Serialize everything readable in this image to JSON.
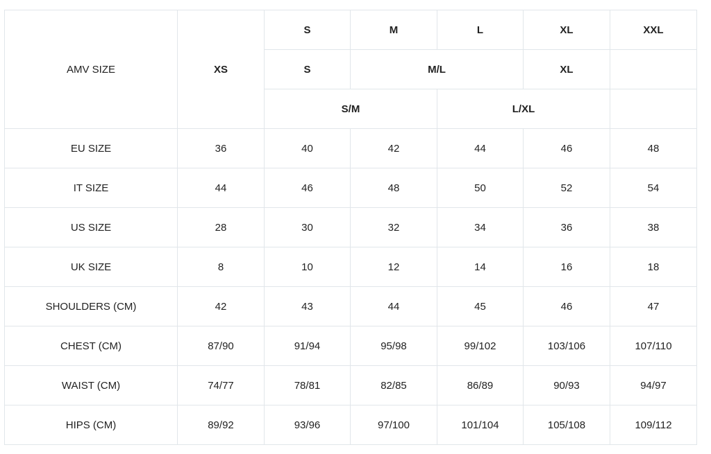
{
  "header": {
    "label": "AMV SIZE",
    "xs": "XS",
    "row1": [
      "S",
      "M",
      "L",
      "XL",
      "XXL"
    ],
    "row2": [
      "S",
      "M/L",
      "XL",
      ""
    ],
    "row3": [
      "S/M",
      "L/XL",
      ""
    ]
  },
  "rows": [
    {
      "label": "EU SIZE",
      "values": [
        "36",
        "40",
        "42",
        "44",
        "46",
        "48"
      ]
    },
    {
      "label": "IT SIZE",
      "values": [
        "44",
        "46",
        "48",
        "50",
        "52",
        "54"
      ]
    },
    {
      "label": "US SIZE",
      "values": [
        "28",
        "30",
        "32",
        "34",
        "36",
        "38"
      ]
    },
    {
      "label": "UK SIZE",
      "values": [
        "8",
        "10",
        "12",
        "14",
        "16",
        "18"
      ]
    },
    {
      "label": "SHOULDERS (CM)",
      "values": [
        "42",
        "43",
        "44",
        "45",
        "46",
        "47"
      ]
    },
    {
      "label": "CHEST (CM)",
      "values": [
        "87/90",
        "91/94",
        "95/98",
        "99/102",
        "103/106",
        "107/110"
      ]
    },
    {
      "label": "WAIST (CM)",
      "values": [
        "74/77",
        "78/81",
        "82/85",
        "86/89",
        "90/93",
        "94/97"
      ]
    },
    {
      "label": "HIPS (CM)",
      "values": [
        "89/92",
        "93/96",
        "97/100",
        "101/104",
        "105/108",
        "109/112"
      ]
    }
  ],
  "colors": {
    "border": "#e1e6ea",
    "text": "#222222"
  }
}
